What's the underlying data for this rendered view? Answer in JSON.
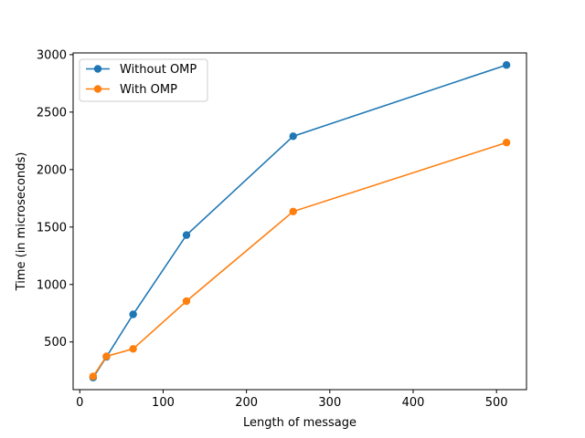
{
  "chart_data": {
    "type": "line",
    "title": "",
    "xlabel": "Length of message",
    "ylabel": "Time (in microseconds)",
    "x": [
      16,
      32,
      64,
      128,
      256,
      512
    ],
    "series": [
      {
        "name": "Without OMP",
        "color": "#1f77b4",
        "values": [
          190,
          370,
          740,
          1430,
          2290,
          2910
        ]
      },
      {
        "name": "With OMP",
        "color": "#ff7f0e",
        "values": [
          200,
          375,
          440,
          855,
          1635,
          2235
        ]
      }
    ],
    "xlim": [
      -8,
      536
    ],
    "ylim": [
      85,
      3015
    ],
    "xticks": [
      0,
      100,
      200,
      300,
      400,
      500
    ],
    "yticks": [
      500,
      1000,
      1500,
      2000,
      2500,
      3000
    ],
    "grid": false,
    "legend": "top-left"
  }
}
